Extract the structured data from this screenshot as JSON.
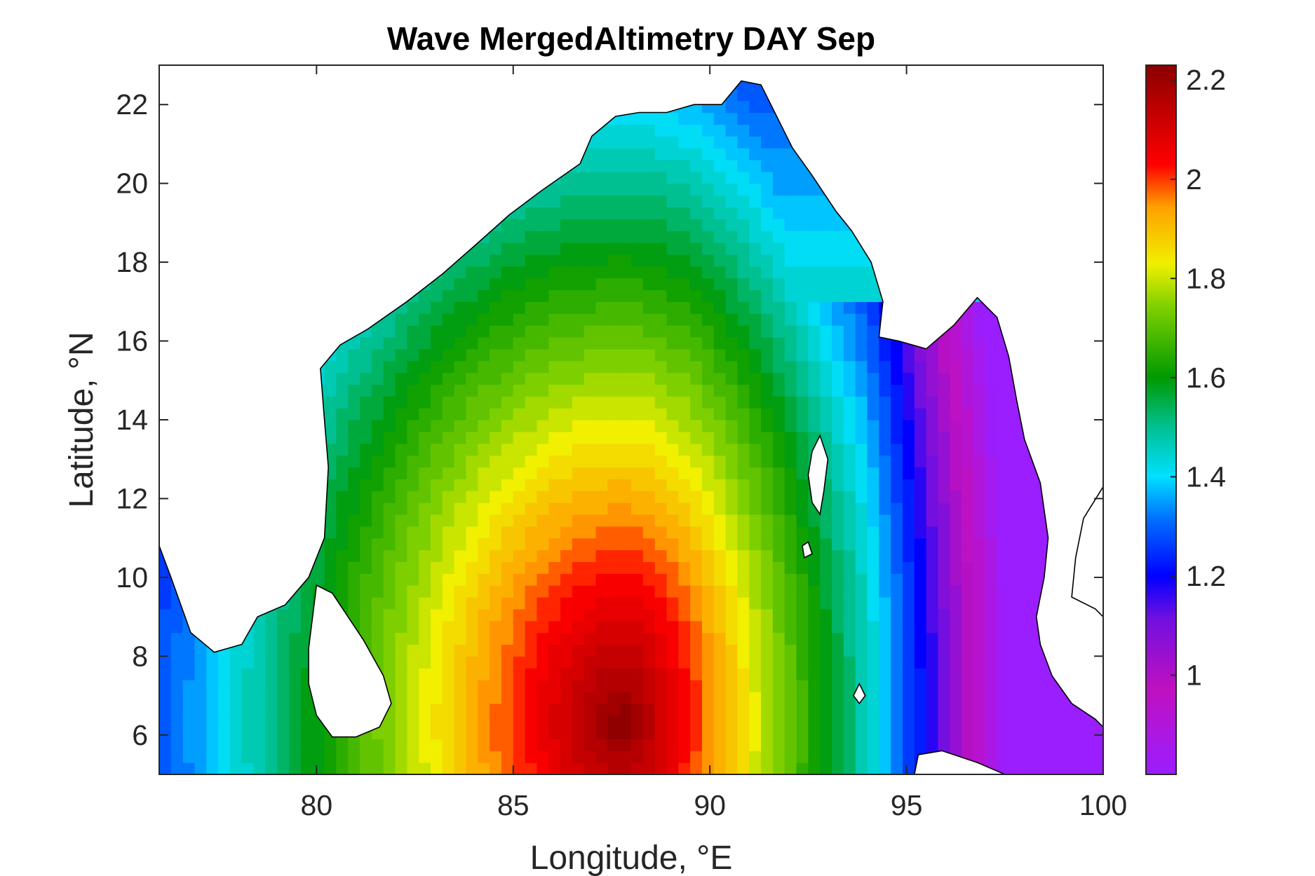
{
  "title": "Wave MergedAltimetry DAY Sep",
  "chart_data": {
    "type": "heatmap",
    "title": "Wave MergedAltimetry DAY Sep",
    "xlabel": "Longitude, °E",
    "ylabel": "Latitude, °N",
    "xlim": [
      76,
      100
    ],
    "ylim": [
      5,
      23
    ],
    "x_ticks": [
      "80",
      "85",
      "90",
      "95",
      "100"
    ],
    "y_ticks": [
      "6",
      "8",
      "10",
      "12",
      "14",
      "16",
      "18",
      "20",
      "22"
    ],
    "colorbar": {
      "min": 0.8,
      "max": 2.23,
      "ticks": [
        "1",
        "1.2",
        "1.4",
        "1.6",
        "1.8",
        "2",
        "2.2"
      ],
      "colormap": [
        "#9a1eff",
        "#c010c0",
        "#7010e0",
        "#0000ff",
        "#0070ff",
        "#00e0ff",
        "#00c090",
        "#009a00",
        "#80d000",
        "#f0f000",
        "#ffa000",
        "#ff0000",
        "#8b0000"
      ]
    },
    "field": {
      "peak": {
        "lon": 87.8,
        "lat": 6.2,
        "value": 2.23
      },
      "min_region": "Andaman Sea near 99°E, ~0.85–1.0"
    },
    "land": "white"
  }
}
